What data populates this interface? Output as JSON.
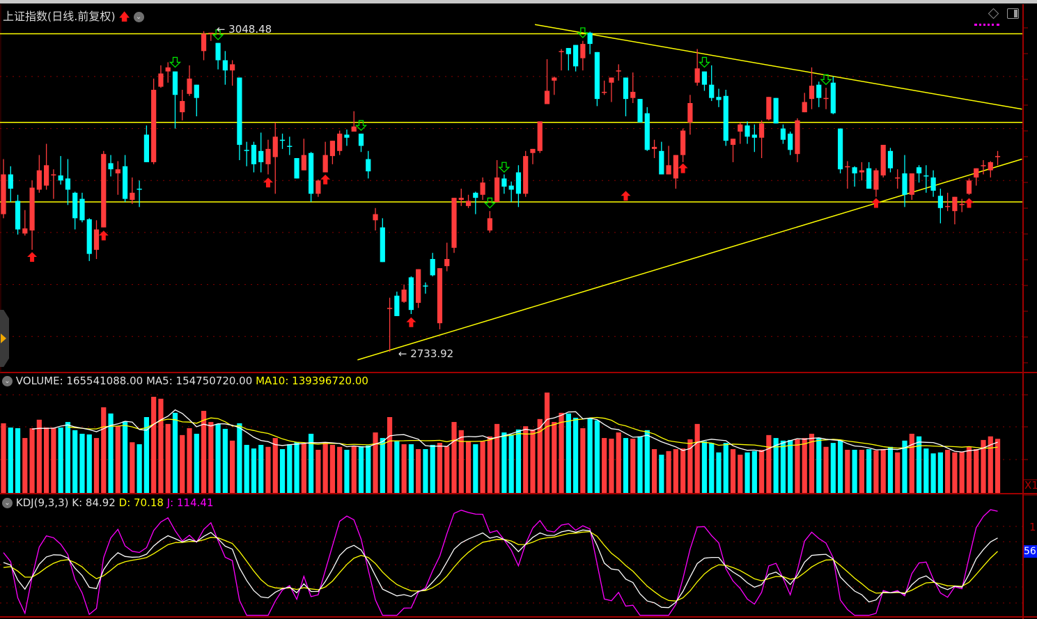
{
  "header": {
    "title": "上证指数(日线.前复权)",
    "icons": [
      "red-up-arrow-icon",
      "chevron-down-circle-icon",
      "diamond-icon",
      "panel-toggle-icon"
    ]
  },
  "volume_header": {
    "label": "VOLUME: 165541088.00",
    "ma5": "MA5: 154750720.00",
    "ma10": "MA10: 139396720.00"
  },
  "kdj_header": {
    "label": "KDJ(9,3,3)",
    "k": "K: 84.92",
    "d": "D: 70.18",
    "j": "J: 114.41"
  },
  "right_axis": {
    "volume_multiplier": "X1",
    "kdj_tick": "1",
    "cursor_value": "56"
  },
  "annotations": {
    "high_label": "3048.48",
    "low_label": "2733.92"
  },
  "colors": {
    "up": "#ff3c3c",
    "down": "#00ffff",
    "ma10": "#ffff00",
    "ma5": "#ffffff",
    "j_line": "#ff00ff",
    "trendline": "#ffff00",
    "grid": "#8b0000"
  },
  "chart_data": {
    "type": "candlestick",
    "ylim": [
      2715,
      3075
    ],
    "grid": true,
    "grid_prices": [
      3004,
      2953,
      2902,
      2851,
      2800,
      2749
    ],
    "high": {
      "index": 29,
      "value": 3048.48
    },
    "low": {
      "index": 55,
      "value": 2733.92
    },
    "ohlc": [
      [
        2869,
        2923,
        2865,
        2908
      ],
      [
        2908,
        2916,
        2881,
        2894
      ],
      [
        2882,
        2888,
        2849,
        2854
      ],
      [
        2850,
        2873,
        2848,
        2855
      ],
      [
        2853,
        2902,
        2834,
        2895
      ],
      [
        2893,
        2927,
        2890,
        2912
      ],
      [
        2897,
        2938,
        2893,
        2917
      ],
      [
        2907,
        2913,
        2884,
        2908
      ],
      [
        2907,
        2926,
        2898,
        2902
      ],
      [
        2904,
        2923,
        2878,
        2893
      ],
      [
        2890,
        2891,
        2854,
        2865
      ],
      [
        2884,
        2890,
        2861,
        2863
      ],
      [
        2864,
        2865,
        2823,
        2830
      ],
      [
        2834,
        2863,
        2825,
        2854
      ],
      [
        2856,
        2931,
        2856,
        2928
      ],
      [
        2919,
        2927,
        2906,
        2913
      ],
      [
        2909,
        2921,
        2888,
        2913
      ],
      [
        2916,
        2927,
        2881,
        2884
      ],
      [
        2883,
        2905,
        2879,
        2890
      ],
      [
        2894,
        2902,
        2876,
        2893
      ],
      [
        2947,
        2956,
        2920,
        2920
      ],
      [
        2920,
        3002,
        2918,
        2991
      ],
      [
        2994,
        3015,
        2993,
        3007
      ],
      [
        3009,
        3018,
        2998,
        3013
      ],
      [
        3009,
        3009,
        2953,
        2986
      ],
      [
        2969,
        2991,
        2961,
        2980
      ],
      [
        2987,
        3015,
        2985,
        3002
      ],
      [
        2996,
        2996,
        2965,
        2983
      ],
      [
        3029,
        3048.48,
        3020,
        3046
      ],
      [
        3046,
        3047,
        3039,
        3047
      ],
      [
        3037,
        3037,
        3011,
        3020
      ],
      [
        3020,
        3029,
        2996,
        3010
      ],
      [
        3010,
        3020,
        2995,
        3016
      ],
      [
        3003,
        3003,
        2922,
        2937
      ],
      [
        2932,
        2940,
        2916,
        2931
      ],
      [
        2937,
        2940,
        2910,
        2918
      ],
      [
        2931,
        2949,
        2910,
        2920
      ],
      [
        2918,
        2942,
        2908,
        2933
      ],
      [
        2925,
        2959,
        2889,
        2945
      ],
      [
        2942,
        2948,
        2933,
        2941
      ],
      [
        2936,
        2945,
        2927,
        2935
      ],
      [
        2924,
        2924,
        2904,
        2904
      ],
      [
        2912,
        2943,
        2912,
        2927
      ],
      [
        2929,
        2930,
        2881,
        2889
      ],
      [
        2889,
        2903,
        2886,
        2902
      ],
      [
        2910,
        2940,
        2910,
        2927
      ],
      [
        2926,
        2941,
        2918,
        2941
      ],
      [
        2931,
        2951,
        2927,
        2948
      ],
      [
        2947,
        2952,
        2936,
        2944
      ],
      [
        2950,
        2970,
        2950,
        2955
      ],
      [
        2948,
        2948,
        2930,
        2936
      ],
      [
        2923,
        2931,
        2904,
        2911
      ],
      [
        2863,
        2875,
        2853,
        2869
      ],
      [
        2856,
        2865,
        2822,
        2822
      ],
      [
        2776,
        2787,
        2733.92,
        2777
      ],
      [
        2789,
        2793,
        2769,
        2769
      ],
      [
        2783,
        2800,
        2782,
        2795
      ],
      [
        2807,
        2808,
        2771,
        2775
      ],
      [
        2782,
        2815,
        2777,
        2815
      ],
      [
        2799,
        2802,
        2791,
        2798
      ],
      [
        2825,
        2831,
        2808,
        2809
      ],
      [
        2762,
        2816,
        2756,
        2816
      ],
      [
        2818,
        2841,
        2813,
        2825
      ],
      [
        2836,
        2885,
        2831,
        2885
      ],
      [
        2883,
        2894,
        2877,
        2885
      ],
      [
        2877,
        2888,
        2875,
        2882
      ],
      [
        2890,
        2891,
        2869,
        2885
      ],
      [
        2888,
        2905,
        2883,
        2900
      ],
      [
        2853,
        2872,
        2851,
        2865
      ],
      [
        2881,
        2922,
        2881,
        2905
      ],
      [
        2904,
        2908,
        2889,
        2896
      ],
      [
        2897,
        2901,
        2881,
        2893
      ],
      [
        2910,
        2917,
        2876,
        2889
      ],
      [
        2889,
        2931,
        2886,
        2926
      ],
      [
        2929,
        2933,
        2918,
        2933
      ],
      [
        2931,
        2960,
        2929,
        2960
      ],
      [
        2977,
        3021,
        2977,
        2990
      ],
      [
        3000,
        3004,
        2986,
        3003
      ],
      [
        3028,
        3031,
        3010,
        3029
      ],
      [
        3032,
        3032,
        3010,
        3026
      ],
      [
        3035,
        3035,
        3009,
        3014
      ],
      [
        3022,
        3039,
        3010,
        3036
      ],
      [
        3047,
        3048,
        3026,
        3036
      ],
      [
        3028,
        3028,
        2975,
        2982
      ],
      [
        2988,
        3000,
        2986,
        2989
      ],
      [
        2998,
        3003,
        2979,
        3003
      ],
      [
        3009,
        3016,
        3000,
        3010
      ],
      [
        3003,
        3003,
        2965,
        2982
      ],
      [
        2983,
        3008,
        2978,
        2989
      ],
      [
        2982,
        2982,
        2959,
        2959
      ],
      [
        2968,
        2974,
        2931,
        2932
      ],
      [
        2933,
        2942,
        2924,
        2935
      ],
      [
        2931,
        2940,
        2908,
        2908
      ],
      [
        2908,
        2936,
        2908,
        2917
      ],
      [
        2904,
        2927,
        2894,
        2927
      ],
      [
        2927,
        2953,
        2920,
        2951
      ],
      [
        2959,
        2986,
        2947,
        2978
      ],
      [
        2998,
        3031,
        2995,
        3012
      ],
      [
        3009,
        3009,
        2990,
        2996
      ],
      [
        2996,
        3015,
        2980,
        2983
      ],
      [
        2984,
        2992,
        2974,
        2981
      ],
      [
        2985,
        2991,
        2936,
        2941
      ],
      [
        2937,
        2943,
        2920,
        2943
      ],
      [
        2950,
        2959,
        2938,
        2957
      ],
      [
        2956,
        2960,
        2938,
        2945
      ],
      [
        2947,
        2957,
        2930,
        2944
      ],
      [
        2944,
        2961,
        2924,
        2958
      ],
      [
        2962,
        2984,
        2961,
        2984
      ],
      [
        2983,
        2983,
        2958,
        2958
      ],
      [
        2953,
        2957,
        2938,
        2942
      ],
      [
        2948,
        2950,
        2927,
        2932
      ],
      [
        2928,
        2963,
        2920,
        2961
      ],
      [
        2969,
        2988,
        2969,
        2979
      ],
      [
        2982,
        3013,
        2972,
        2995
      ],
      [
        2996,
        2999,
        2974,
        2983
      ],
      [
        2982,
        2993,
        2972,
        2983
      ],
      [
        2998,
        3004,
        2967,
        2968
      ],
      [
        2953,
        2953,
        2909,
        2913
      ],
      [
        2916,
        2921,
        2894,
        2916
      ],
      [
        2915,
        2916,
        2896,
        2909
      ],
      [
        2910,
        2920,
        2902,
        2912
      ],
      [
        2914,
        2920,
        2894,
        2894
      ],
      [
        2893,
        2914,
        2886,
        2912
      ],
      [
        2907,
        2937,
        2905,
        2937
      ],
      [
        2931,
        2934,
        2910,
        2914
      ],
      [
        2905,
        2913,
        2894,
        2905
      ],
      [
        2909,
        2927,
        2876,
        2888
      ],
      [
        2888,
        2909,
        2883,
        2909
      ],
      [
        2915,
        2917,
        2900,
        2909
      ],
      [
        2907,
        2917,
        2890,
        2906
      ],
      [
        2905,
        2912,
        2886,
        2892
      ],
      [
        2887,
        2894,
        2860,
        2875
      ],
      [
        2876,
        2890,
        2872,
        2877
      ],
      [
        2872,
        2886,
        2859,
        2886
      ],
      [
        2879,
        2884,
        2871,
        2879
      ],
      [
        2889,
        2904,
        2888,
        2902
      ],
      [
        2905,
        2914,
        2897,
        2914
      ],
      [
        2916,
        2922,
        2908,
        2917
      ],
      [
        2912,
        2921,
        2905,
        2920
      ],
      [
        2926,
        2931,
        2917,
        2926
      ]
    ],
    "volume": [
      213000000.0,
      200000000.0,
      198000000.0,
      168000000.0,
      198000000.0,
      224000000.0,
      200000000.0,
      200000000.0,
      200000000.0,
      217000000.0,
      192000000.0,
      181000000.0,
      179000000.0,
      168000000.0,
      262000000.0,
      243000000.0,
      204000000.0,
      219000000.0,
      155000000.0,
      149000000.0,
      232000000.0,
      294000000.0,
      288000000.0,
      211000000.0,
      245000000.0,
      177000000.0,
      198000000.0,
      181000000.0,
      251000000.0,
      217000000.0,
      211000000.0,
      196000000.0,
      160000000.0,
      213000000.0,
      147000000.0,
      136000000.0,
      147000000.0,
      141000000.0,
      168000000.0,
      134000000.0,
      149000000.0,
      155000000.0,
      151000000.0,
      181000000.0,
      132000000.0,
      155000000.0,
      147000000.0,
      141000000.0,
      132000000.0,
      143000000.0,
      143000000.0,
      145000000.0,
      185000000.0,
      168000000.0,
      232000000.0,
      158000000.0,
      149000000.0,
      149000000.0,
      134000000.0,
      134000000.0,
      147000000.0,
      153000000.0,
      143000000.0,
      217000000.0,
      192000000.0,
      158000000.0,
      149000000.0,
      158000000.0,
      173000000.0,
      211000000.0,
      185000000.0,
      179000000.0,
      194000000.0,
      204000000.0,
      194000000.0,
      226000000.0,
      307000000.0,
      217000000.0,
      245000000.0,
      243000000.0,
      230000000.0,
      198000000.0,
      228000000.0,
      222000000.0,
      168000000.0,
      166000000.0,
      185000000.0,
      168000000.0,
      166000000.0,
      173000000.0,
      192000000.0,
      134000000.0,
      117000000.0,
      128000000.0,
      134000000.0,
      136000000.0,
      164000000.0,
      211000000.0,
      158000000.0,
      153000000.0,
      124000000.0,
      153000000.0,
      134000000.0,
      117000000.0,
      124000000.0,
      128000000.0,
      132000000.0,
      177000000.0,
      168000000.0,
      160000000.0,
      162000000.0,
      164000000.0,
      168000000.0,
      181000000.0,
      168000000.0,
      141000000.0,
      153000000.0,
      160000000.0,
      132000000.0,
      132000000.0,
      132000000.0,
      134000000.0,
      130000000.0,
      134000000.0,
      141000000.0,
      124000000.0,
      160000000.0,
      181000000.0,
      173000000.0,
      136000000.0,
      121000000.0,
      124000000.0,
      132000000.0,
      124000000.0,
      126000000.0,
      141000000.0,
      134000000.0,
      162000000.0,
      173000000.0,
      165541088
    ],
    "volume_ylim": [
      0,
      364000000.0
    ],
    "volume_ma": [
      5,
      10
    ],
    "kdj_params": [
      9,
      3,
      3
    ],
    "kdj_ylim": [
      0,
      131
    ],
    "horizontal_lines": [
      3046,
      2959,
      2881
    ],
    "trend_lines": [
      {
        "from": [
          74.3,
          3055
        ],
        "to": [
          142.4,
          2972
        ]
      },
      {
        "from": [
          49.5,
          2726
        ],
        "to": [
          142.4,
          2923
        ]
      }
    ],
    "buy_signals": [
      [
        4,
        2827
      ],
      [
        14,
        2848
      ],
      [
        37,
        2900
      ],
      [
        45,
        2903
      ],
      [
        57,
        2763
      ],
      [
        87,
        2887
      ],
      [
        95,
        2914
      ],
      [
        122,
        2880
      ],
      [
        135,
        2880
      ]
    ],
    "sell_signals": [
      [
        24,
        3018
      ],
      [
        30,
        3045
      ],
      [
        50,
        2956
      ],
      [
        68,
        2880
      ],
      [
        70,
        2915
      ],
      [
        81,
        3047
      ],
      [
        98,
        3018
      ],
      [
        115,
        3001
      ]
    ]
  }
}
